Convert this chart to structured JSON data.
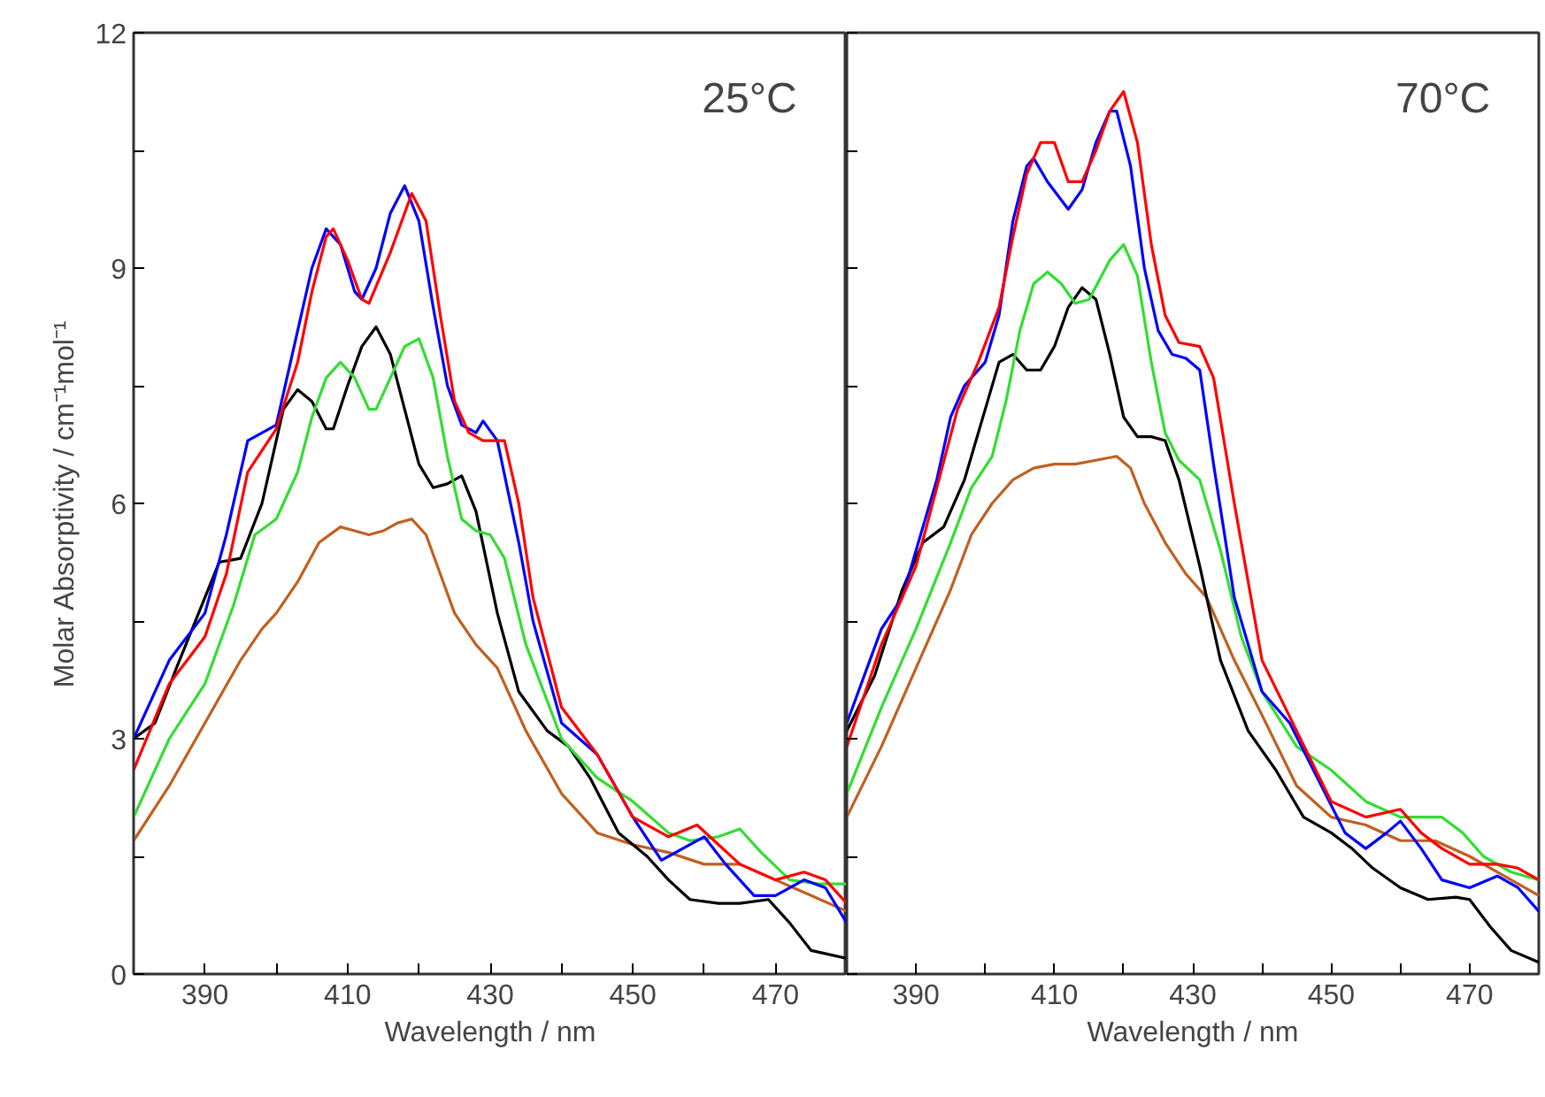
{
  "chart_data": [
    {
      "type": "line",
      "xlabel": "Wavelength / nm",
      "ylabel": "Molar Absorptivity / cm⁻¹mol⁻¹",
      "annotations": [
        "25°C"
      ],
      "xlim": [
        380,
        480
      ],
      "ylim": [
        0,
        12
      ],
      "xticks": [
        390,
        {
          "value": 400,
          "label": null
        },
        410,
        {
          "value": 420,
          "label": null
        },
        430,
        {
          "value": 440,
          "label": null
        },
        450,
        {
          "value": 460,
          "label": null
        },
        470
      ],
      "yticks": [
        0,
        {
          "value": 1.5,
          "label": null
        },
        3,
        {
          "value": 4.5,
          "label": null
        },
        6,
        {
          "value": 7.5,
          "label": null
        },
        9,
        {
          "value": 10.5,
          "label": null
        },
        12
      ],
      "series": [
        {
          "color": "#c06020",
          "x": [
            380,
            385,
            390,
            395,
            398,
            400,
            403,
            406,
            409,
            411,
            413,
            415,
            417,
            419,
            421,
            423,
            425,
            428,
            431,
            435,
            440,
            445,
            450,
            455,
            460,
            465,
            470,
            475,
            480
          ],
          "values": [
            1.7,
            2.4,
            3.2,
            4.0,
            4.4,
            4.6,
            5.0,
            5.5,
            5.7,
            5.65,
            5.6,
            5.65,
            5.75,
            5.8,
            5.6,
            5.1,
            4.6,
            4.2,
            3.9,
            3.1,
            2.3,
            1.8,
            1.65,
            1.55,
            1.4,
            1.4,
            1.2,
            1.0,
            0.8
          ]
        },
        {
          "color": "#000000",
          "x": [
            380,
            383,
            386,
            390,
            392,
            395,
            398,
            401,
            403,
            405,
            407,
            408,
            410,
            412,
            414,
            416,
            418,
            420,
            422,
            424,
            426,
            428,
            431,
            434,
            438,
            441,
            444,
            448,
            452,
            455,
            458,
            462,
            465,
            469,
            472,
            475,
            480
          ],
          "values": [
            3.0,
            3.2,
            3.9,
            4.8,
            5.25,
            5.3,
            6.0,
            7.2,
            7.45,
            7.3,
            6.95,
            6.95,
            7.5,
            8.0,
            8.25,
            7.9,
            7.2,
            6.5,
            6.2,
            6.25,
            6.35,
            5.9,
            4.6,
            3.6,
            3.1,
            2.9,
            2.5,
            1.8,
            1.5,
            1.2,
            0.95,
            0.9,
            0.9,
            0.95,
            0.65,
            0.3,
            0.2
          ]
        },
        {
          "color": "#33dd33",
          "x": [
            380,
            385,
            390,
            394,
            397,
            400,
            403,
            405,
            407,
            409,
            411,
            413,
            414,
            416,
            418,
            420,
            422,
            424,
            426,
            428,
            430,
            432,
            435,
            440,
            445,
            450,
            455,
            458,
            462,
            465,
            468,
            472,
            476,
            480
          ],
          "values": [
            2.0,
            3.0,
            3.7,
            4.7,
            5.6,
            5.8,
            6.4,
            7.1,
            7.6,
            7.8,
            7.6,
            7.2,
            7.2,
            7.6,
            8.0,
            8.1,
            7.6,
            6.6,
            5.8,
            5.65,
            5.6,
            5.3,
            4.2,
            3.0,
            2.5,
            2.2,
            1.8,
            1.7,
            1.75,
            1.85,
            1.55,
            1.2,
            1.15,
            1.15
          ]
        },
        {
          "color": "#0000ff",
          "x": [
            380,
            385,
            390,
            393,
            396,
            400,
            403,
            405,
            407,
            409,
            411,
            412,
            414,
            416,
            418,
            420,
            422,
            424,
            426,
            428,
            429,
            431,
            434,
            436,
            440,
            445,
            450,
            454,
            457,
            460,
            463,
            467,
            470,
            474,
            477,
            480
          ],
          "values": [
            3.0,
            4.0,
            4.6,
            5.6,
            6.8,
            7.0,
            8.2,
            9.0,
            9.5,
            9.3,
            8.7,
            8.6,
            9.0,
            9.7,
            10.05,
            9.6,
            8.5,
            7.5,
            7.0,
            6.9,
            7.05,
            6.8,
            5.5,
            4.5,
            3.2,
            2.8,
            2.0,
            1.45,
            1.6,
            1.75,
            1.4,
            1.0,
            1.0,
            1.2,
            1.1,
            0.65
          ]
        },
        {
          "color": "#ff0000",
          "x": [
            380,
            385,
            390,
            393,
            396,
            400,
            403,
            405,
            407,
            408,
            410,
            412,
            413,
            416,
            419,
            421,
            423,
            425,
            427,
            429,
            432,
            434,
            436,
            440,
            445,
            450,
            455,
            459,
            462,
            465,
            470,
            474,
            477,
            480
          ],
          "values": [
            2.6,
            3.7,
            4.3,
            5.1,
            6.4,
            6.95,
            7.8,
            8.7,
            9.4,
            9.5,
            9.1,
            8.6,
            8.55,
            9.2,
            9.95,
            9.6,
            8.4,
            7.3,
            6.9,
            6.8,
            6.8,
            6.0,
            4.8,
            3.4,
            2.8,
            2.0,
            1.75,
            1.9,
            1.65,
            1.4,
            1.2,
            1.3,
            1.2,
            0.9
          ]
        }
      ]
    },
    {
      "type": "line",
      "xlabel": "Wavelength / nm",
      "annotations": [
        "70°C"
      ],
      "xlim": [
        380,
        480
      ],
      "ylim": [
        0,
        12
      ],
      "tick_labels": "x",
      "xticks": [
        390,
        {
          "value": 400,
          "label": null
        },
        410,
        {
          "value": 420,
          "label": null
        },
        430,
        {
          "value": 440,
          "label": null
        },
        450,
        {
          "value": 460,
          "label": null
        },
        470
      ],
      "yticks": [
        0,
        1.5,
        3,
        4.5,
        6,
        7.5,
        9,
        10.5,
        12
      ],
      "series": [
        {
          "color": "#c06020",
          "x": [
            380,
            385,
            390,
            395,
            398,
            401,
            404,
            407,
            410,
            413,
            416,
            419,
            421,
            423,
            426,
            429,
            432,
            436,
            440,
            445,
            450,
            455,
            460,
            465,
            470,
            475,
            480
          ],
          "values": [
            2.0,
            2.9,
            3.9,
            4.9,
            5.6,
            6.0,
            6.3,
            6.45,
            6.5,
            6.5,
            6.55,
            6.6,
            6.45,
            6.0,
            5.5,
            5.1,
            4.8,
            4.0,
            3.3,
            2.4,
            2.0,
            1.9,
            1.7,
            1.7,
            1.5,
            1.25,
            1.0
          ]
        },
        {
          "color": "#000000",
          "x": [
            380,
            384,
            388,
            391,
            394,
            397,
            400,
            402,
            404,
            406,
            408,
            410,
            412,
            414,
            416,
            418,
            420,
            422,
            424,
            426,
            428,
            431,
            434,
            438,
            442,
            446,
            450,
            453,
            456,
            460,
            464,
            468,
            470,
            473,
            476,
            480
          ],
          "values": [
            3.1,
            3.8,
            4.9,
            5.5,
            5.7,
            6.3,
            7.2,
            7.8,
            7.9,
            7.7,
            7.7,
            8.0,
            8.5,
            8.75,
            8.6,
            7.9,
            7.1,
            6.85,
            6.85,
            6.8,
            6.3,
            5.2,
            4.0,
            3.1,
            2.6,
            2.0,
            1.8,
            1.6,
            1.35,
            1.1,
            0.95,
            0.98,
            0.95,
            0.6,
            0.3,
            0.15
          ]
        },
        {
          "color": "#33dd33",
          "x": [
            380,
            385,
            390,
            395,
            398,
            401,
            403,
            405,
            407,
            409,
            411,
            413,
            415,
            418,
            420,
            422,
            424,
            426,
            428,
            431,
            434,
            437,
            440,
            445,
            450,
            455,
            460,
            463,
            466,
            469,
            472,
            476,
            480
          ],
          "values": [
            2.3,
            3.4,
            4.4,
            5.5,
            6.2,
            6.6,
            7.3,
            8.2,
            8.8,
            8.95,
            8.8,
            8.55,
            8.6,
            9.1,
            9.3,
            8.9,
            7.8,
            6.9,
            6.55,
            6.3,
            5.4,
            4.3,
            3.6,
            2.9,
            2.6,
            2.2,
            2.0,
            2.0,
            2.0,
            1.8,
            1.5,
            1.3,
            1.2
          ]
        },
        {
          "color": "#0000ff",
          "x": [
            380,
            385,
            388,
            390,
            393,
            395,
            397,
            400,
            402,
            404,
            406,
            407,
            409,
            412,
            414,
            416,
            418,
            419,
            421,
            423,
            425,
            427,
            429,
            431,
            433,
            436,
            440,
            444,
            448,
            452,
            455,
            458,
            460,
            463,
            466,
            470,
            474,
            477,
            480
          ],
          "values": [
            3.2,
            4.4,
            4.8,
            5.4,
            6.3,
            7.1,
            7.5,
            7.8,
            8.4,
            9.6,
            10.3,
            10.4,
            10.1,
            9.75,
            10.0,
            10.6,
            11.0,
            11.0,
            10.3,
            9.0,
            8.2,
            7.9,
            7.85,
            7.7,
            6.5,
            4.8,
            3.6,
            3.2,
            2.5,
            1.8,
            1.6,
            1.8,
            1.95,
            1.6,
            1.2,
            1.1,
            1.25,
            1.1,
            0.8
          ]
        },
        {
          "color": "#ff0000",
          "x": [
            380,
            385,
            390,
            393,
            396,
            399,
            402,
            404,
            406,
            408,
            410,
            412,
            414,
            416,
            418,
            420,
            422,
            424,
            426,
            428,
            431,
            433,
            436,
            440,
            445,
            450,
            455,
            460,
            463,
            466,
            470,
            474,
            477,
            480
          ],
          "values": [
            2.9,
            4.2,
            5.2,
            6.2,
            7.2,
            7.8,
            8.5,
            9.4,
            10.2,
            10.6,
            10.6,
            10.1,
            10.1,
            10.5,
            11.0,
            11.25,
            10.6,
            9.3,
            8.4,
            8.05,
            8.0,
            7.6,
            6.0,
            4.0,
            3.1,
            2.2,
            2.0,
            2.1,
            1.8,
            1.6,
            1.4,
            1.4,
            1.35,
            1.2
          ]
        }
      ]
    }
  ]
}
